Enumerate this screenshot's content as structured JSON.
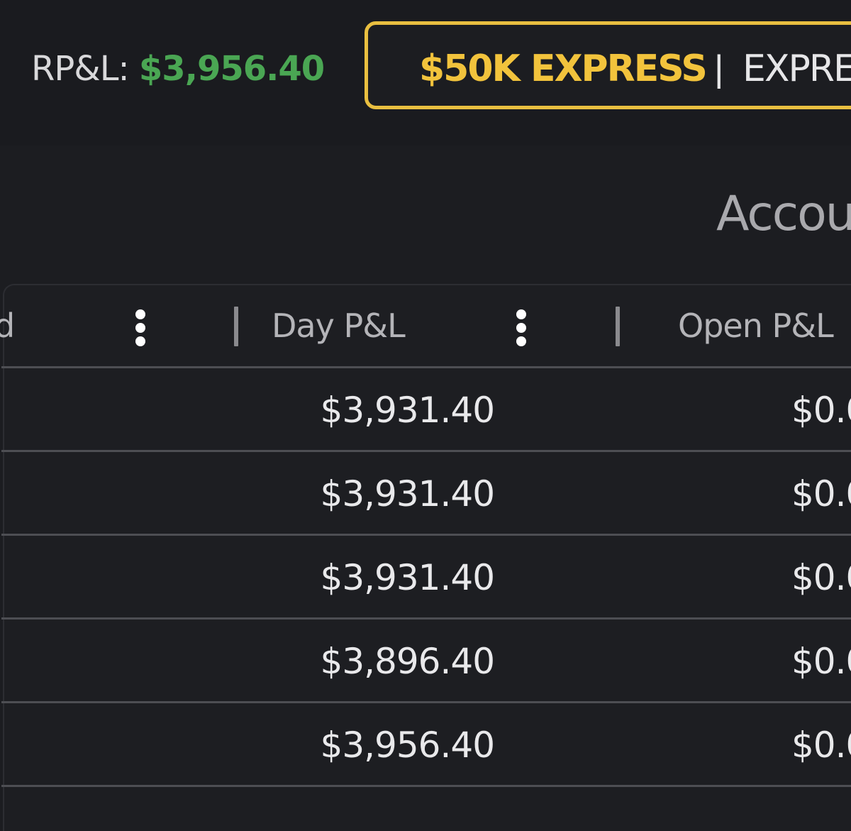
{
  "header": {
    "rpl_label": "RP&L:",
    "rpl_value": "$3,956.40",
    "account_name": "$50K EXPRESS",
    "separator": "|",
    "account_type": "EXPRE"
  },
  "section_title": "Accou",
  "table": {
    "columns": [
      {
        "label": "d",
        "key": "cut-column"
      },
      {
        "label": "Day P&L",
        "key": "day_pnl"
      },
      {
        "label": "Open P&L",
        "key": "open_pnl"
      }
    ],
    "rows": [
      {
        "day_pnl": "$3,931.40",
        "open_pnl": "$0.0"
      },
      {
        "day_pnl": "$3,931.40",
        "open_pnl": "$0.0"
      },
      {
        "day_pnl": "$3,931.40",
        "open_pnl": "$0.0"
      },
      {
        "day_pnl": "$3,896.40",
        "open_pnl": "$0.0"
      },
      {
        "day_pnl": "$3,956.40",
        "open_pnl": "$0.0"
      }
    ]
  },
  "colors": {
    "background": "#1c1d21",
    "profit_green": "#4aa653",
    "account_gold": "#f2c33c",
    "pill_border": "#e9bf40",
    "text_light": "#e9e9eb",
    "text_muted": "#b4b4b8",
    "row_divider": "#4d4e53"
  },
  "icons": [
    "more-vertical-icon",
    "column-resize-handle"
  ]
}
